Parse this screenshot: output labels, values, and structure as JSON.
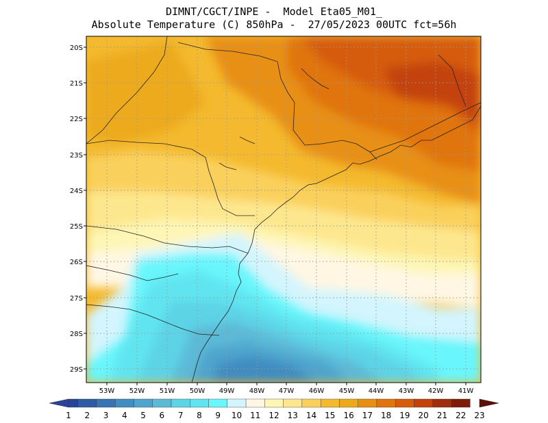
{
  "header": {
    "line1": "DIMNT/CGCT/INPE -  Model Eta05_M01_",
    "line2": "Absolute Temperature (C) 850hPa -  27/05/2023 00UTC fct=56h"
  },
  "map": {
    "lon_range": [
      -53.8,
      -40.6
    ],
    "lat_range": [
      -29.4,
      -19.8
    ],
    "lat_ticks": [
      "20S",
      "21S",
      "22S",
      "23S",
      "24S",
      "25S",
      "26S",
      "27S",
      "28S",
      "29S"
    ],
    "lon_ticks": [
      "53W",
      "52W",
      "51W",
      "50W",
      "49W",
      "48W",
      "47W",
      "46W",
      "45W",
      "44W",
      "43W",
      "42W",
      "41W"
    ],
    "grid": true
  },
  "colorbar": {
    "labels": [
      "1",
      "2",
      "3",
      "4",
      "5",
      "6",
      "7",
      "8",
      "9",
      "10",
      "11",
      "12",
      "13",
      "14",
      "15",
      "16",
      "17",
      "18",
      "19",
      "20",
      "21",
      "22",
      "23"
    ],
    "colors": [
      "#27439a",
      "#2d5ba6",
      "#3873b3",
      "#418cc1",
      "#4ea4cd",
      "#5cbad7",
      "#5dd3e6",
      "#60e5f0",
      "#69f6fc",
      "#d3f5fd",
      "#fff7e3",
      "#fdf6b5",
      "#fde78e",
      "#fad05c",
      "#f4b92e",
      "#ecaa1b",
      "#e88f12",
      "#e07510",
      "#d65b0d",
      "#c3420c",
      "#a02e0e",
      "#7e1b0b",
      "#5c0e09"
    ]
  }
}
